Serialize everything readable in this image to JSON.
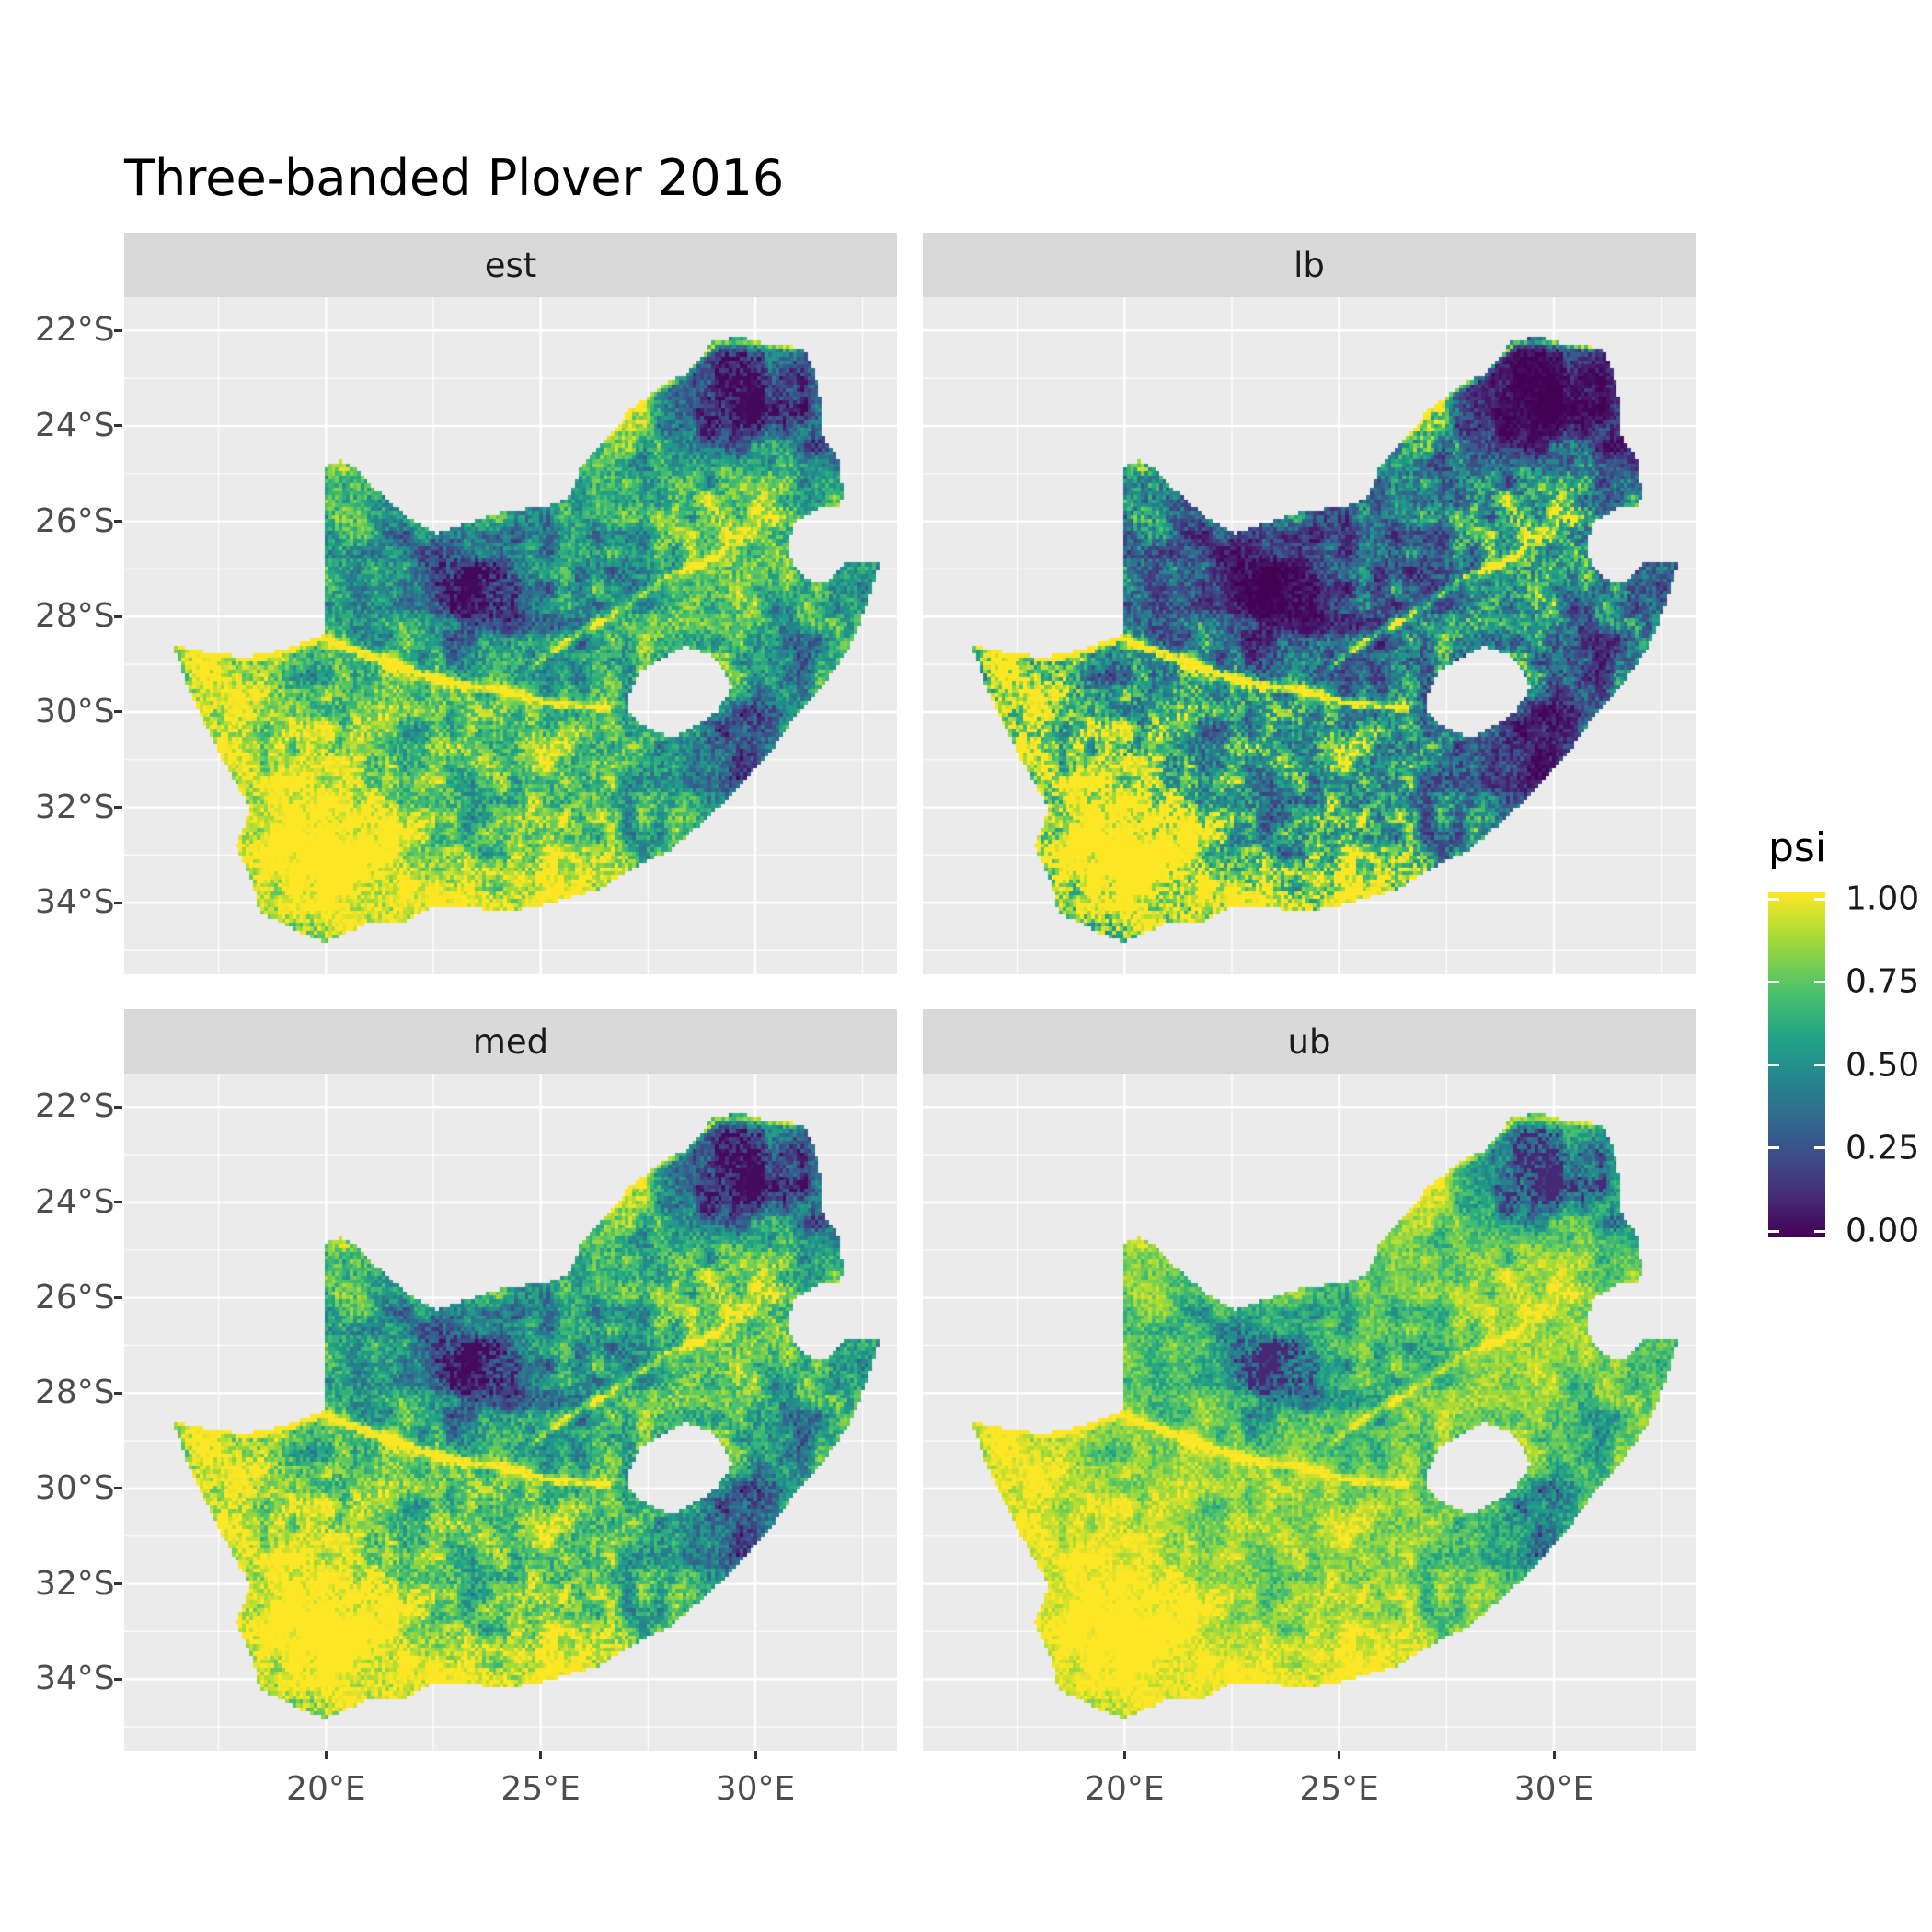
{
  "chart_data": {
    "type": "heatmap",
    "subtype": "faceted_raster_map",
    "title": "Three-banded Plover 2016",
    "region": "South Africa (Lesotho shown as hole in raster)",
    "variable": "psi",
    "value_range": [
      0,
      1
    ],
    "facets": [
      {
        "key": "est",
        "label": "est",
        "summary": "occupancy point estimate: mixed mid-high psi; low (dark) patches in NW-central Kalahari, NE Limpopo lowveld and eastern Drakensberg; high (yellow) along west/south coasts and major rivers"
      },
      {
        "key": "lb",
        "label": "lb",
        "summary": "lower credible bound: overall lower psi; Kalahari and NE regions near 0 (deep purple); coasts and rivers remain near 1"
      },
      {
        "key": "med",
        "label": "med",
        "summary": "median estimate: very similar to est, slightly brighter"
      },
      {
        "key": "ub",
        "label": "ub",
        "summary": "upper credible bound: overall high psi, mostly yellow-green; former dark regions become teal/green"
      }
    ],
    "x_axis": {
      "ticks": [
        "20°E",
        "25°E",
        "30°E"
      ],
      "tick_values": [
        20,
        25,
        30
      ],
      "range": [
        15.3,
        33.3
      ],
      "minor_values": [
        17.5,
        22.5,
        27.5,
        32.5
      ]
    },
    "y_axis": {
      "ticks": [
        "22°S",
        "24°S",
        "26°S",
        "28°S",
        "30°S",
        "32°S",
        "34°S"
      ],
      "tick_values": [
        -22,
        -24,
        -26,
        -28,
        -30,
        -32,
        -34
      ],
      "range": [
        -35.5,
        -21.3
      ],
      "minor_values": [
        -23,
        -25,
        -27,
        -29,
        -31,
        -33,
        -35
      ]
    },
    "legend": {
      "title": "psi",
      "ticks": [
        "1.00",
        "0.75",
        "0.50",
        "0.25",
        "0.00"
      ],
      "tick_values": [
        1.0,
        0.75,
        0.5,
        0.25,
        0.0
      ],
      "position": "right"
    },
    "palette": {
      "name": "viridis",
      "stops": [
        "#440154",
        "#46327e",
        "#365c8d",
        "#277f8e",
        "#1fa187",
        "#4ac16d",
        "#a0da39",
        "#fde725"
      ]
    },
    "grid": "major and minor white gridlines on light gray panels",
    "cell_size_deg": 0.0833,
    "facet_gamma": {
      "est": 1.0,
      "lb": 1.9,
      "med": 0.92,
      "ub": 0.55
    },
    "field": {
      "base": 0.7,
      "noise": {
        "f1": 0.55,
        "a1": 0.34,
        "f2": 2.7,
        "a2": 0.4,
        "speckle": 0.32
      },
      "blobs": [
        {
          "x": 19.5,
          "y": -32.8,
          "sx": 2.8,
          "sy": 2.0,
          "a": 0.3
        },
        {
          "x": 23.8,
          "y": -34.0,
          "sx": 3.8,
          "sy": 1.1,
          "a": 0.25
        },
        {
          "x": 17.4,
          "y": -29.8,
          "sx": 1.4,
          "sy": 2.2,
          "a": 0.2
        },
        {
          "x": 23.2,
          "y": -27.4,
          "sx": 2.3,
          "sy": 1.5,
          "a": -0.5
        },
        {
          "x": 30.4,
          "y": -23.4,
          "sx": 1.6,
          "sy": 1.2,
          "a": -0.55
        },
        {
          "x": 29.2,
          "y": -23.2,
          "sx": 1.0,
          "sy": 0.8,
          "a": -0.25
        },
        {
          "x": 28.7,
          "y": -24.7,
          "sx": 1.1,
          "sy": 0.9,
          "a": -0.25
        },
        {
          "x": 31.5,
          "y": -24.9,
          "sx": 0.7,
          "sy": 1.3,
          "a": -0.35
        },
        {
          "x": 29.9,
          "y": -30.7,
          "sx": 1.2,
          "sy": 1.1,
          "a": -0.45
        },
        {
          "x": 30.9,
          "y": -28.6,
          "sx": 0.8,
          "sy": 0.9,
          "a": -0.25
        }
      ],
      "rivers": [
        {
          "pts": [
            [
              16.6,
              -28.6
            ],
            [
              18.4,
              -28.85
            ],
            [
              19.9,
              -28.45
            ],
            [
              21.3,
              -28.9
            ],
            [
              22.6,
              -29.35
            ],
            [
              24.1,
              -29.55
            ],
            [
              25.4,
              -29.85
            ],
            [
              26.6,
              -29.9
            ]
          ],
          "a": 0.45,
          "w": 0.1
        },
        {
          "pts": [
            [
              29.1,
              -26.75
            ],
            [
              27.9,
              -27.2
            ],
            [
              26.8,
              -27.9
            ],
            [
              25.8,
              -28.4
            ],
            [
              24.8,
              -29.05
            ]
          ],
          "a": 0.38,
          "w": 0.09
        },
        {
          "pts": [
            [
              26.5,
              -24.3
            ],
            [
              27.4,
              -23.4
            ],
            [
              28.4,
              -22.9
            ],
            [
              29.1,
              -22.25
            ],
            [
              30.0,
              -22.25
            ],
            [
              31.1,
              -22.35
            ]
          ],
          "a": 0.4,
          "w": 0.08
        }
      ]
    },
    "boundary": [
      [
        16.45,
        -28.6
      ],
      [
        17.2,
        -28.75
      ],
      [
        18.1,
        -28.85
      ],
      [
        19.0,
        -28.7
      ],
      [
        19.55,
        -28.5
      ],
      [
        20.0,
        -28.38
      ],
      [
        20.0,
        -24.85
      ],
      [
        20.35,
        -24.72
      ],
      [
        20.75,
        -24.92
      ],
      [
        21.3,
        -25.45
      ],
      [
        21.95,
        -25.95
      ],
      [
        22.6,
        -26.25
      ],
      [
        23.25,
        -26.05
      ],
      [
        23.9,
        -25.85
      ],
      [
        24.6,
        -25.75
      ],
      [
        25.3,
        -25.65
      ],
      [
        25.7,
        -25.45
      ],
      [
        25.95,
        -24.8
      ],
      [
        26.45,
        -24.35
      ],
      [
        27.1,
        -23.65
      ],
      [
        27.85,
        -23.15
      ],
      [
        28.4,
        -22.9
      ],
      [
        29.05,
        -22.2
      ],
      [
        29.7,
        -22.15
      ],
      [
        30.3,
        -22.3
      ],
      [
        31.1,
        -22.35
      ],
      [
        31.4,
        -22.9
      ],
      [
        31.55,
        -23.6
      ],
      [
        31.6,
        -24.3
      ],
      [
        31.95,
        -24.7
      ],
      [
        32.02,
        -25.3
      ],
      [
        32.0,
        -25.65
      ],
      [
        31.4,
        -25.75
      ],
      [
        30.95,
        -26.0
      ],
      [
        30.8,
        -26.4
      ],
      [
        30.85,
        -26.85
      ],
      [
        31.15,
        -27.2
      ],
      [
        31.65,
        -27.3
      ],
      [
        32.1,
        -26.85
      ],
      [
        32.9,
        -26.85
      ],
      [
        32.65,
        -27.6
      ],
      [
        32.3,
        -28.5
      ],
      [
        31.7,
        -29.3
      ],
      [
        31.0,
        -30.0
      ],
      [
        30.3,
        -30.9
      ],
      [
        29.5,
        -31.7
      ],
      [
        28.8,
        -32.3
      ],
      [
        28.0,
        -32.9
      ],
      [
        27.1,
        -33.3
      ],
      [
        26.4,
        -33.7
      ],
      [
        25.65,
        -33.9
      ],
      [
        25.0,
        -34.05
      ],
      [
        24.2,
        -34.2
      ],
      [
        23.4,
        -34.1
      ],
      [
        22.55,
        -34.05
      ],
      [
        21.8,
        -34.4
      ],
      [
        20.95,
        -34.45
      ],
      [
        20.0,
        -34.82
      ],
      [
        19.4,
        -34.62
      ],
      [
        18.8,
        -34.35
      ],
      [
        18.45,
        -34.2
      ],
      [
        18.3,
        -33.6
      ],
      [
        17.9,
        -32.8
      ],
      [
        18.25,
        -32.05
      ],
      [
        17.6,
        -31.0
      ],
      [
        17.05,
        -30.0
      ],
      [
        16.75,
        -29.4
      ]
    ],
    "lesotho_hole": [
      [
        27.05,
        -29.65
      ],
      [
        27.35,
        -29.1
      ],
      [
        27.8,
        -28.9
      ],
      [
        28.4,
        -28.62
      ],
      [
        28.95,
        -28.8
      ],
      [
        29.3,
        -29.15
      ],
      [
        29.45,
        -29.5
      ],
      [
        29.1,
        -29.98
      ],
      [
        28.65,
        -30.28
      ],
      [
        28.05,
        -30.55
      ],
      [
        27.45,
        -30.33
      ],
      [
        27.08,
        -30.0
      ]
    ]
  },
  "colors": {
    "background": "#FFFFFF",
    "panel_bg": "#EBEBEB",
    "strip_bg": "#D9D9D9",
    "strip_text": "#1A1A1A",
    "gridline": "#FFFFFF",
    "axis_text": "#4D4D4D",
    "tick_mark": "#333333",
    "title_text": "#000000"
  }
}
